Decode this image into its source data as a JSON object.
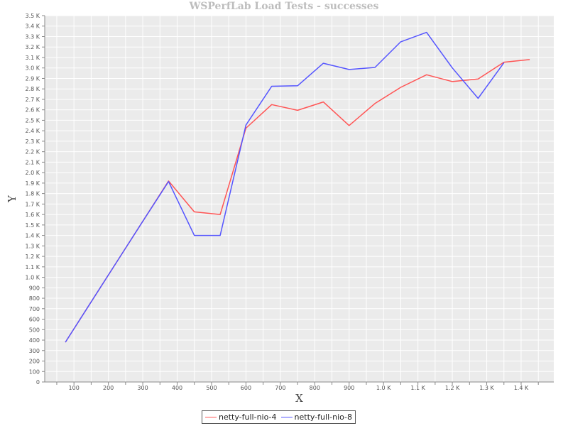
{
  "chart_data": {
    "type": "line",
    "title": "WSPerfLab Load Tests - successes",
    "xlabel": "X",
    "ylabel": "Y",
    "xlim": [
      15,
      1495
    ],
    "ylim": [
      0,
      3500
    ],
    "grid": true,
    "legend_position": "bottom-center",
    "x_ticks": [
      {
        "value": 100,
        "label": "100"
      },
      {
        "value": 200,
        "label": "200"
      },
      {
        "value": 300,
        "label": "300"
      },
      {
        "value": 400,
        "label": "400"
      },
      {
        "value": 500,
        "label": "500"
      },
      {
        "value": 600,
        "label": "600"
      },
      {
        "value": 700,
        "label": "700"
      },
      {
        "value": 800,
        "label": "800"
      },
      {
        "value": 900,
        "label": "900"
      },
      {
        "value": 1000,
        "label": "1.0 K"
      },
      {
        "value": 1100,
        "label": "1.1 K"
      },
      {
        "value": 1200,
        "label": "1.2 K"
      },
      {
        "value": 1300,
        "label": "1.3 K"
      },
      {
        "value": 1400,
        "label": "1.4 K"
      }
    ],
    "y_ticks": [
      {
        "value": 0,
        "label": "0"
      },
      {
        "value": 100,
        "label": "100"
      },
      {
        "value": 200,
        "label": "200"
      },
      {
        "value": 300,
        "label": "300"
      },
      {
        "value": 400,
        "label": "400"
      },
      {
        "value": 500,
        "label": "500"
      },
      {
        "value": 600,
        "label": "600"
      },
      {
        "value": 700,
        "label": "700"
      },
      {
        "value": 800,
        "label": "800"
      },
      {
        "value": 900,
        "label": "900"
      },
      {
        "value": 1000,
        "label": "1.0 K"
      },
      {
        "value": 1100,
        "label": "1.1 K"
      },
      {
        "value": 1200,
        "label": "1.2 K"
      },
      {
        "value": 1300,
        "label": "1.3 K"
      },
      {
        "value": 1400,
        "label": "1.4 K"
      },
      {
        "value": 1500,
        "label": "1.5 K"
      },
      {
        "value": 1600,
        "label": "1.6 K"
      },
      {
        "value": 1700,
        "label": "1.7 K"
      },
      {
        "value": 1800,
        "label": "1.8 K"
      },
      {
        "value": 1900,
        "label": "1.9 K"
      },
      {
        "value": 2000,
        "label": "2.0 K"
      },
      {
        "value": 2100,
        "label": "2.1 K"
      },
      {
        "value": 2200,
        "label": "2.2 K"
      },
      {
        "value": 2300,
        "label": "2.3 K"
      },
      {
        "value": 2400,
        "label": "2.4 K"
      },
      {
        "value": 2500,
        "label": "2.5 K"
      },
      {
        "value": 2600,
        "label": "2.6 K"
      },
      {
        "value": 2700,
        "label": "2.7 K"
      },
      {
        "value": 2800,
        "label": "2.8 K"
      },
      {
        "value": 2900,
        "label": "2.9 K"
      },
      {
        "value": 3000,
        "label": "3.0 K"
      },
      {
        "value": 3100,
        "label": "3.1 K"
      },
      {
        "value": 3200,
        "label": "3.2 K"
      },
      {
        "value": 3300,
        "label": "3.3 K"
      },
      {
        "value": 3400,
        "label": "3.4 K"
      },
      {
        "value": 3500,
        "label": "3.5 K"
      }
    ],
    "series": [
      {
        "name": "netty-full-nio-4",
        "color": "#ff5555",
        "x": [
          75,
          150,
          225,
          300,
          375,
          450,
          525,
          600,
          675,
          750,
          825,
          900,
          975,
          1050,
          1125,
          1200,
          1275,
          1350,
          1425
        ],
        "y": [
          380,
          765,
          1150,
          1535,
          1920,
          1625,
          1600,
          2425,
          2650,
          2595,
          2675,
          2450,
          2660,
          2815,
          2935,
          2870,
          2895,
          3055,
          3080
        ]
      },
      {
        "name": "netty-full-nio-8",
        "color": "#5555ff",
        "x": [
          75,
          150,
          225,
          300,
          375,
          450,
          525,
          600,
          675,
          750,
          825,
          900,
          975,
          1050,
          1125,
          1200,
          1275,
          1350
        ],
        "y": [
          380,
          765,
          1150,
          1535,
          1915,
          1400,
          1400,
          2455,
          2825,
          2830,
          3045,
          2985,
          3005,
          3250,
          3340,
          3000,
          2710,
          3050
        ]
      }
    ]
  },
  "colors": {
    "plot_background": "#ebebeb",
    "gridline": "#ffffff",
    "axis": "#888888",
    "title": "#bdbdbd"
  }
}
